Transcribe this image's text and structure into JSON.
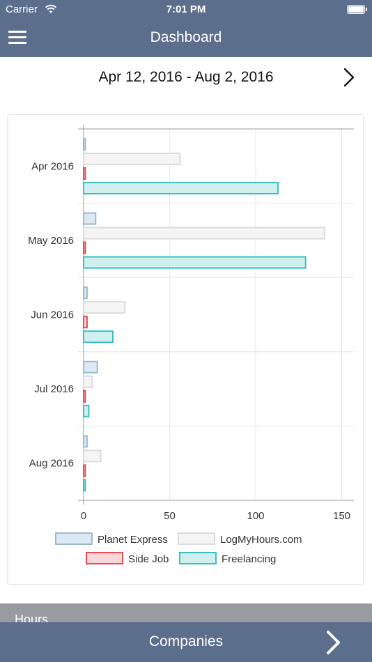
{
  "status_bar": {
    "carrier": "Carrier",
    "time": "7:01 PM"
  },
  "nav": {
    "title": "Dashboard"
  },
  "date_range": {
    "label": "Apr 12, 2016 - Aug 2, 2016"
  },
  "section": {
    "hours_label": "Hours"
  },
  "bottom_bar": {
    "label": "Companies"
  },
  "icons": {
    "menu": "hamburger-menu-icon",
    "next": "chevron-right-icon",
    "wifi": "wifi-icon",
    "battery": "battery-icon"
  },
  "chart_data": {
    "type": "bar",
    "orientation": "horizontal",
    "categories": [
      "Apr 2016",
      "May 2016",
      "Jun 2016",
      "Jul 2016",
      "Aug 2016"
    ],
    "series": [
      {
        "name": "Planet Express",
        "values": [
          1,
          7,
          2,
          8,
          2
        ],
        "fill": "#dde9f2",
        "stroke": "#9bbad0"
      },
      {
        "name": "LogMyHours.com",
        "values": [
          56,
          140,
          24,
          5,
          10
        ],
        "fill": "#f5f5f5",
        "stroke": "#dcdcdc"
      },
      {
        "name": "Side Job",
        "values": [
          1,
          1,
          2,
          1,
          1
        ],
        "fill": "#f9d6d8",
        "stroke": "#e84c57"
      },
      {
        "name": "Freelancing",
        "values": [
          113,
          129,
          17,
          3,
          1
        ],
        "fill": "#d2eff0",
        "stroke": "#3dbfc0"
      }
    ],
    "x_ticks": [
      0,
      50,
      100,
      150
    ],
    "xlim": [
      0,
      156
    ],
    "grid": true,
    "legend_position": "bottom"
  }
}
